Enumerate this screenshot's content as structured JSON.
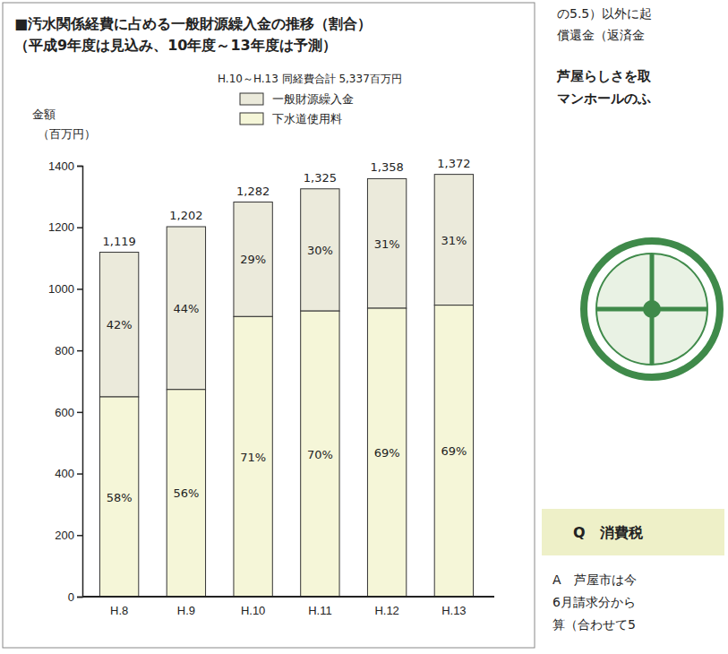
{
  "chart_data": {
    "type": "bar",
    "stacked": true,
    "data_labels": true,
    "grid": false,
    "legend": "top",
    "title": "■汚水関係経費に占める一般財源繰入金の推移（割合）",
    "subtitle": "（平成9年度は見込み、10年度～13年度は予測）",
    "note": "H.10～H.13 同経費合計 5,337百万円",
    "y_label": [
      "金額",
      "（百万円）"
    ],
    "categories": [
      "H.8",
      "H.9",
      "H.10",
      "H.11",
      "H.12",
      "H.13"
    ],
    "series": [
      {
        "name": "一般財源繰入金",
        "color": "#ebeadb",
        "values": [
          470,
          529,
          372,
          397,
          421,
          425
        ],
        "percent_labels": [
          "42%",
          "44%",
          "29%",
          "30%",
          "31%",
          "31%"
        ]
      },
      {
        "name": "下水道使用料",
        "color": "#f5f6d8",
        "values": [
          649,
          673,
          910,
          928,
          937,
          947
        ],
        "percent_labels": [
          "58%",
          "56%",
          "71%",
          "70%",
          "69%",
          "69%"
        ]
      }
    ],
    "totals": [
      1119,
      1202,
      1282,
      1325,
      1358,
      1372
    ],
    "total_labels": [
      "1,119",
      "1,202",
      "1,282",
      "1,325",
      "1,358",
      "1,372"
    ],
    "ylim": [
      0,
      1400
    ],
    "yticks": [
      0,
      200,
      400,
      600,
      800,
      1000,
      1200,
      1400
    ]
  },
  "side_text": {
    "column_top": [
      "の5.5）以外に起",
      "償還金（返済金"
    ],
    "heading": [
      "芦屋らしさを取",
      "マンホールのふ"
    ],
    "question": "Q　消費税",
    "answer": [
      "A　芦屋市は今",
      "6月請求分から",
      "算（合わせて5"
    ]
  }
}
